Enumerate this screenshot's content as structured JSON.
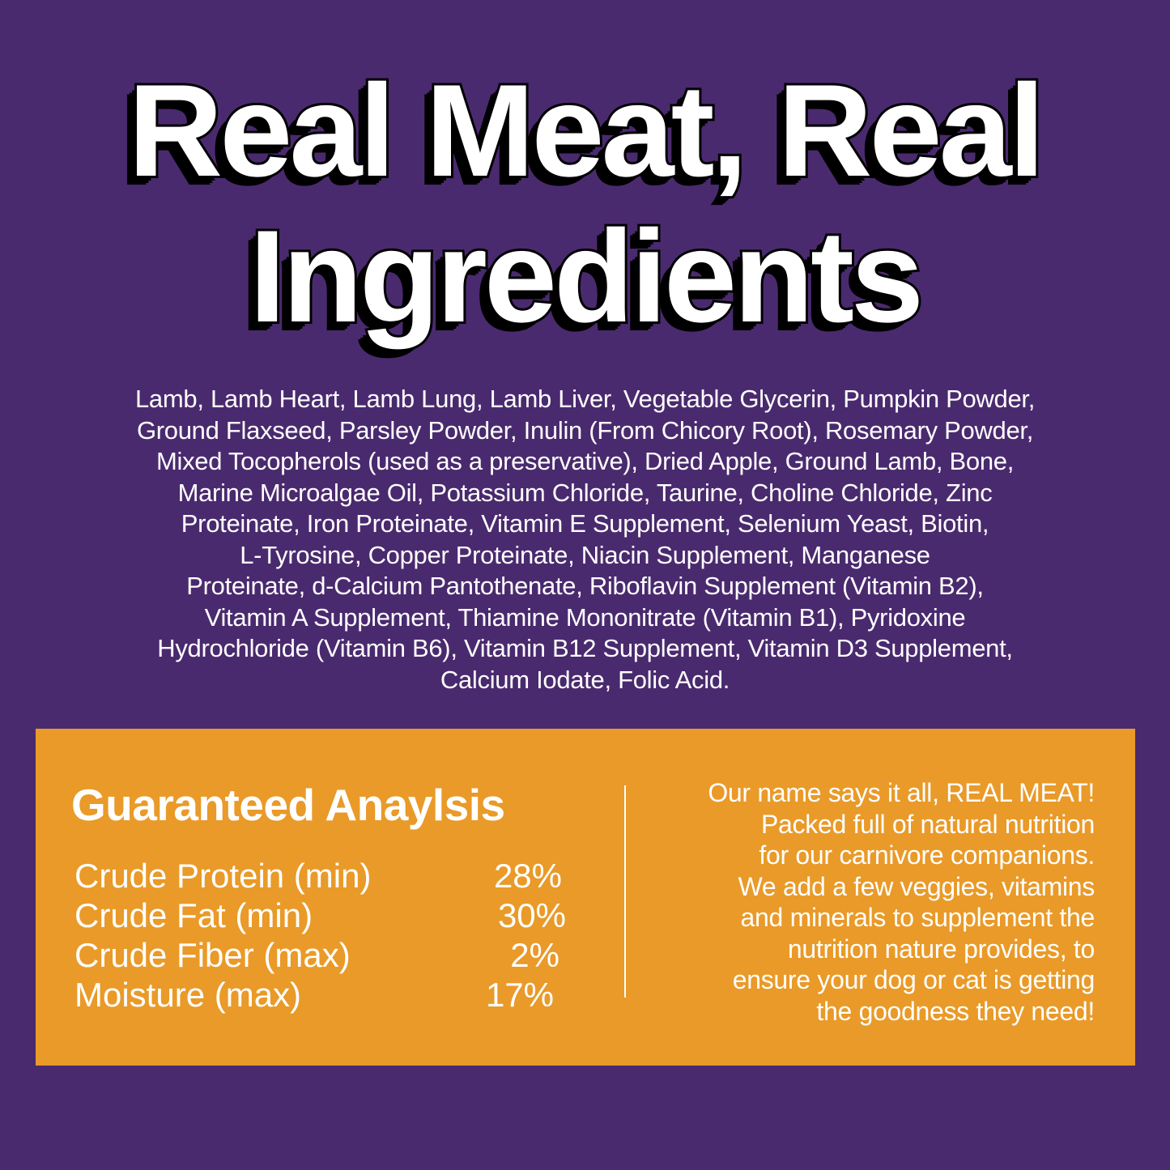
{
  "headline": {
    "lines": [
      "Real Meat, Real",
      "Ingredients"
    ]
  },
  "ingredients": {
    "lines": [
      "Lamb, Lamb Heart, Lamb Lung, Lamb Liver, Vegetable Glycerin, Pumpkin Powder,",
      "Ground Flaxseed, Parsley Powder, Inulin (From Chicory Root), Rosemary Powder,",
      "Mixed Tocopherols (used as a preservative), Dried Apple, Ground Lamb, Bone,",
      "Marine Microalgae Oil, Potassium Chloride, Taurine, Choline Chloride, Zinc",
      "Proteinate, Iron Proteinate, Vitamin E Supplement, Selenium Yeast, Biotin,",
      "L-Tyrosine, Copper Proteinate, Niacin Supplement, Manganese",
      "Proteinate, d-Calcium Pantothenate, Riboflavin Supplement (Vitamin B2),",
      "Vitamin A Supplement, Thiamine Mononitrate (Vitamin B1), Pyridoxine",
      "Hydrochloride (Vitamin B6), Vitamin B12 Supplement, Vitamin D3 Supplement,",
      "Calcium Iodate, Folic Acid."
    ]
  },
  "analysis": {
    "title": "Guaranteed Anaylsis",
    "rows": [
      {
        "label": "Crude Protein (min)",
        "value": "28%"
      },
      {
        "label": "Crude Fat (min)",
        "value": "30%"
      },
      {
        "label": "Crude Fiber (max)",
        "value": "2%"
      },
      {
        "label": "Moisture (max)",
        "value": "17%"
      }
    ]
  },
  "blurb": {
    "lines": [
      "Our name says it all, REAL MEAT!",
      "Packed full of natural nutrition",
      "for our carnivore companions.",
      "We add a few veggies, vitamins",
      "and minerals to supplement the",
      "nutrition nature provides, to",
      "ensure your dog or cat is getting",
      "the goodness they need!"
    ]
  },
  "colors": {
    "background": "#4a2a6e",
    "panel": "#e99a28",
    "text": "#ffffff",
    "shadow": "#000000"
  }
}
